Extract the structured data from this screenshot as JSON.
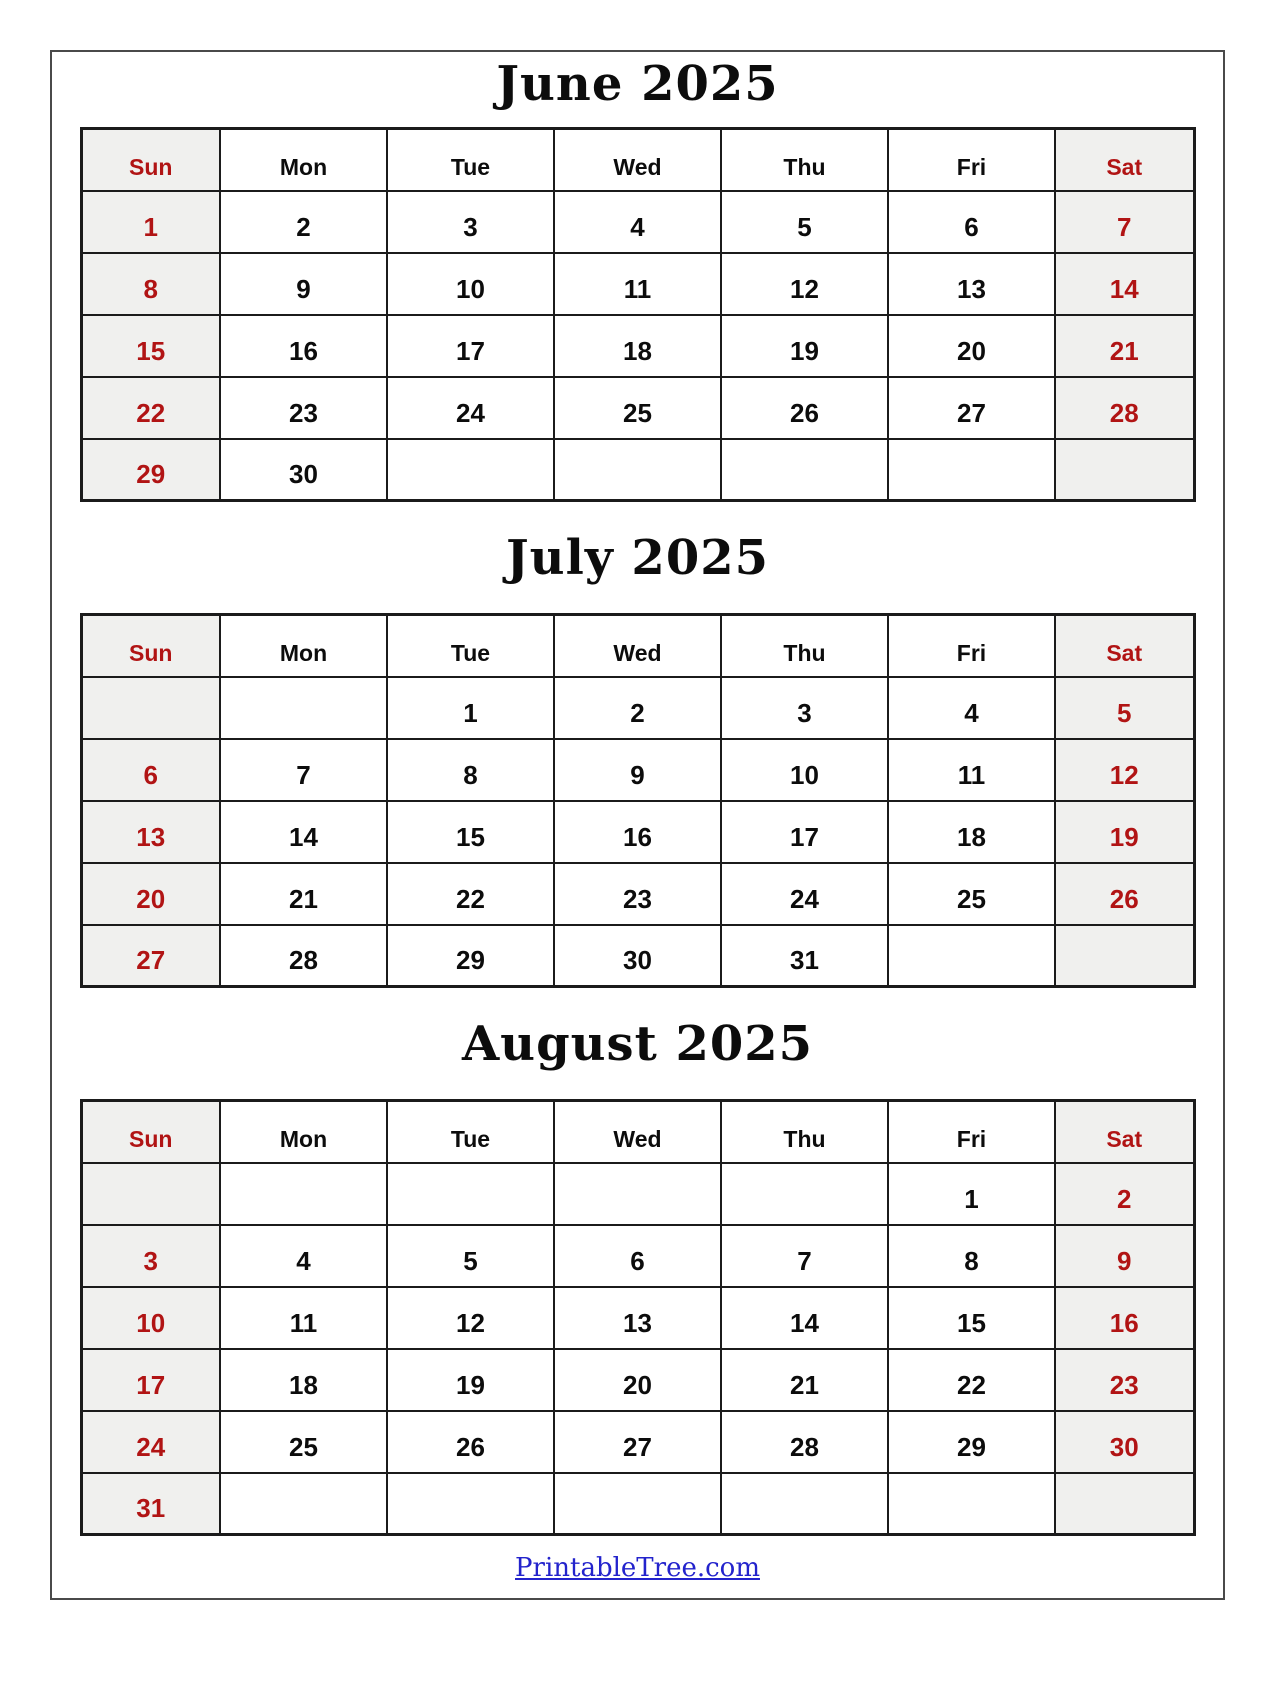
{
  "colors": {
    "accent_red": "#b11414",
    "weekend_bg": "#f0f0ee",
    "grid_border": "#1b1b1b",
    "page_border": "#4a4a4a",
    "link_blue": "#2323cc",
    "text_black": "#0c0c0c"
  },
  "weekdays": [
    "Sun",
    "Mon",
    "Tue",
    "Wed",
    "Thu",
    "Fri",
    "Sat"
  ],
  "months": [
    {
      "title": "June 2025",
      "grid": [
        [
          "1",
          "2",
          "3",
          "4",
          "5",
          "6",
          "7"
        ],
        [
          "8",
          "9",
          "10",
          "11",
          "12",
          "13",
          "14"
        ],
        [
          "15",
          "16",
          "17",
          "18",
          "19",
          "20",
          "21"
        ],
        [
          "22",
          "23",
          "24",
          "25",
          "26",
          "27",
          "28"
        ],
        [
          "29",
          "30",
          "",
          "",
          "",
          "",
          ""
        ]
      ]
    },
    {
      "title": "July 2025",
      "grid": [
        [
          "",
          "",
          "1",
          "2",
          "3",
          "4",
          "5"
        ],
        [
          "6",
          "7",
          "8",
          "9",
          "10",
          "11",
          "12"
        ],
        [
          "13",
          "14",
          "15",
          "16",
          "17",
          "18",
          "19"
        ],
        [
          "20",
          "21",
          "22",
          "23",
          "24",
          "25",
          "26"
        ],
        [
          "27",
          "28",
          "29",
          "30",
          "31",
          "",
          ""
        ]
      ]
    },
    {
      "title": "August 2025",
      "grid": [
        [
          "",
          "",
          "",
          "",
          "",
          "1",
          "2"
        ],
        [
          "3",
          "4",
          "5",
          "6",
          "7",
          "8",
          "9"
        ],
        [
          "10",
          "11",
          "12",
          "13",
          "14",
          "15",
          "16"
        ],
        [
          "17",
          "18",
          "19",
          "20",
          "21",
          "22",
          "23"
        ],
        [
          "24",
          "25",
          "26",
          "27",
          "28",
          "29",
          "30"
        ],
        [
          "31",
          "",
          "",
          "",
          "",
          "",
          ""
        ]
      ]
    }
  ],
  "footer": {
    "link_text": "PrintableTree.com"
  }
}
